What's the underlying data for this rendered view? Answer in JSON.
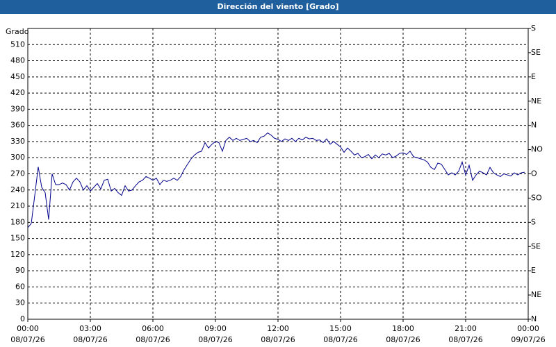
{
  "chart_data": {
    "type": "line",
    "title": "Dirección del viento [Grado]",
    "ylabel": "Grado",
    "x": [
      0,
      10,
      20,
      30,
      40,
      50,
      60,
      70,
      80,
      90,
      100,
      110,
      120,
      130,
      140,
      150,
      160,
      170,
      180,
      190,
      200,
      210,
      220,
      230,
      240,
      250,
      260,
      270,
      280,
      290,
      300,
      310,
      320,
      330,
      340,
      350,
      360,
      370,
      380,
      390,
      400,
      410,
      420,
      430,
      440,
      450,
      460,
      470,
      480,
      490,
      500,
      510,
      520,
      530,
      540,
      550,
      560,
      570,
      580,
      590,
      600,
      610,
      620,
      630,
      640,
      650,
      660,
      670,
      680,
      690,
      700,
      710,
      720,
      730,
      740,
      750,
      760,
      770,
      780,
      790,
      800,
      810,
      820,
      830,
      840,
      850,
      860,
      870,
      880,
      890,
      900,
      910,
      920,
      930,
      940,
      950,
      960,
      970,
      980,
      990,
      1000,
      1010,
      1020,
      1030,
      1040,
      1050,
      1060,
      1070,
      1080,
      1090,
      1100,
      1110,
      1120,
      1130,
      1140,
      1150,
      1160,
      1170,
      1180,
      1190,
      1200,
      1210,
      1220,
      1230,
      1240,
      1250,
      1260,
      1270,
      1280,
      1290,
      1300,
      1310,
      1320,
      1330,
      1340,
      1350,
      1360,
      1370,
      1380,
      1390,
      1400,
      1410,
      1420,
      1430
    ],
    "series": [
      {
        "name": "Dirección del viento",
        "color": "#00008b",
        "values": [
          170,
          178,
          230,
          283,
          245,
          235,
          185,
          270,
          250,
          250,
          253,
          250,
          240,
          255,
          262,
          255,
          240,
          248,
          238,
          245,
          252,
          242,
          258,
          260,
          238,
          243,
          235,
          230,
          248,
          238,
          240,
          248,
          255,
          258,
          265,
          262,
          258,
          262,
          250,
          258,
          256,
          258,
          262,
          258,
          265,
          278,
          288,
          298,
          305,
          310,
          312,
          328,
          318,
          325,
          330,
          328,
          312,
          332,
          338,
          332,
          336,
          332,
          334,
          336,
          330,
          332,
          328,
          338,
          340,
          346,
          342,
          336,
          334,
          330,
          335,
          332,
          336,
          330,
          336,
          333,
          338,
          335,
          336,
          332,
          333,
          328,
          335,
          325,
          330,
          325,
          320,
          310,
          318,
          312,
          305,
          308,
          300,
          302,
          306,
          298,
          305,
          300,
          307,
          305,
          308,
          300,
          303,
          308,
          309,
          306,
          312,
          302,
          300,
          298,
          296,
          292,
          282,
          278,
          290,
          288,
          278,
          268,
          272,
          268,
          275,
          292,
          268,
          286,
          258,
          268,
          275,
          272,
          268,
          282,
          272,
          268,
          265,
          270,
          268,
          266,
          272,
          268,
          272,
          273
        ]
      }
    ],
    "xlim": [
      0,
      1440
    ],
    "xticks": [
      {
        "value": 0,
        "label": "00:00 08/07/26"
      },
      {
        "value": 180,
        "label": "03:00 08/07/26"
      },
      {
        "value": 360,
        "label": "06:00 08/07/26"
      },
      {
        "value": 540,
        "label": "09:00 08/07/26"
      },
      {
        "value": 720,
        "label": "12:00 08/07/26"
      },
      {
        "value": 900,
        "label": "15:00 08/07/26"
      },
      {
        "value": 1080,
        "label": "18:00 08/07/26"
      },
      {
        "value": 1260,
        "label": "21:00 08/07/26"
      },
      {
        "value": 1440,
        "label": "00:00 09/07/26"
      }
    ],
    "ylim": [
      0,
      540
    ],
    "yticks": [
      0,
      30,
      60,
      90,
      120,
      150,
      180,
      210,
      240,
      270,
      300,
      330,
      360,
      390,
      420,
      450,
      480,
      510
    ],
    "y2lim": [
      0,
      540
    ],
    "y2ticks": [
      {
        "value": 0,
        "label": "N"
      },
      {
        "value": 45,
        "label": "NE"
      },
      {
        "value": 90,
        "label": "E"
      },
      {
        "value": 135,
        "label": "SE"
      },
      {
        "value": 180,
        "label": "S"
      },
      {
        "value": 225,
        "label": "SO"
      },
      {
        "value": 270,
        "label": "O"
      },
      {
        "value": 315,
        "label": "NO"
      },
      {
        "value": 360,
        "label": "N"
      },
      {
        "value": 405,
        "label": "NE"
      },
      {
        "value": 450,
        "label": "E"
      },
      {
        "value": 495,
        "label": "SE"
      },
      {
        "value": 540,
        "label": "S"
      }
    ],
    "grid": true
  }
}
